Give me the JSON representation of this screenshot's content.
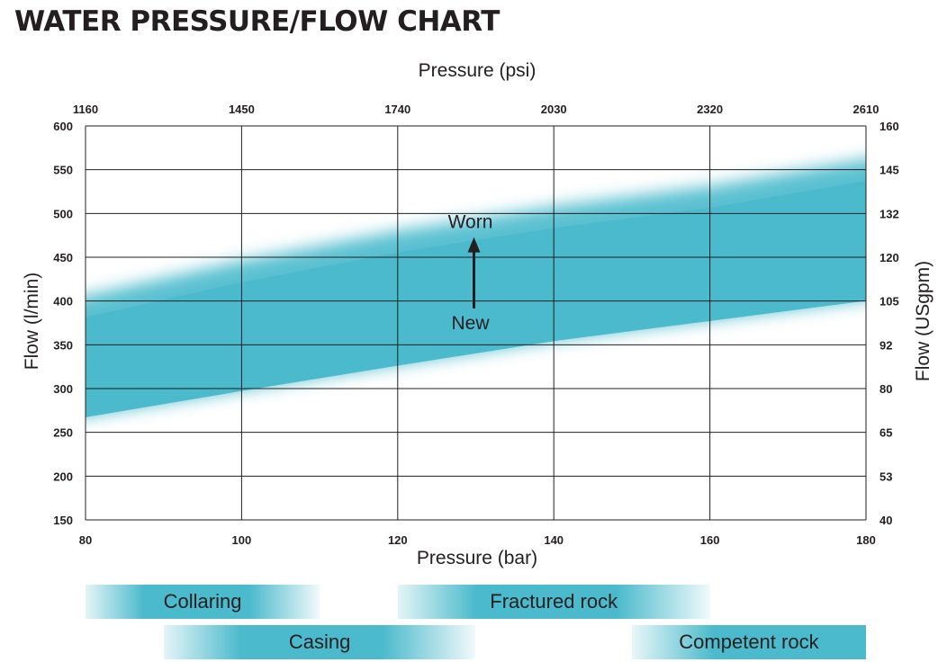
{
  "title": "WATER PRESSURE/FLOW CHART",
  "chart_data": {
    "type": "area",
    "x_axis_bottom": {
      "label": "Pressure (bar)",
      "range": [
        80,
        180
      ],
      "ticks": [
        80,
        100,
        120,
        140,
        160,
        180
      ]
    },
    "x_axis_top": {
      "label": "Pressure (psi)",
      "ticks": [
        "1160",
        "1450",
        "1740",
        "2030",
        "2320",
        "2610"
      ]
    },
    "y_axis_left": {
      "label": "Flow (l/min)",
      "range": [
        150,
        600
      ],
      "ticks": [
        150,
        200,
        250,
        300,
        350,
        400,
        450,
        500,
        550,
        600
      ]
    },
    "y_axis_right": {
      "label": "Flow (USgpm)",
      "ticks": [
        "40",
        "53",
        "65",
        "80",
        "92",
        "105",
        "120",
        "132",
        "145",
        "160"
      ]
    },
    "grid": true,
    "series": [
      {
        "name": "New",
        "x": [
          80,
          100,
          120,
          140,
          160,
          180
        ],
        "y": [
          268,
          298,
          327,
          355,
          378,
          401
        ]
      },
      {
        "name": "Worn",
        "x": [
          80,
          100,
          120,
          140,
          160,
          180
        ],
        "y": [
          400,
          440,
          474,
          502,
          525,
          556
        ]
      }
    ],
    "annotations": [
      {
        "text": "Worn",
        "x": 130,
        "y": 475
      },
      {
        "text": "New",
        "x": 130,
        "y": 372
      }
    ],
    "band_color": "#4abacc"
  },
  "application_bars": [
    {
      "label": "Collaring",
      "range": [
        80,
        110
      ]
    },
    {
      "label": "Fractured rock",
      "range": [
        120,
        160
      ]
    },
    {
      "label": "Casing",
      "range": [
        90,
        130
      ]
    },
    {
      "label": "Competent rock",
      "range": [
        150,
        180
      ]
    }
  ]
}
